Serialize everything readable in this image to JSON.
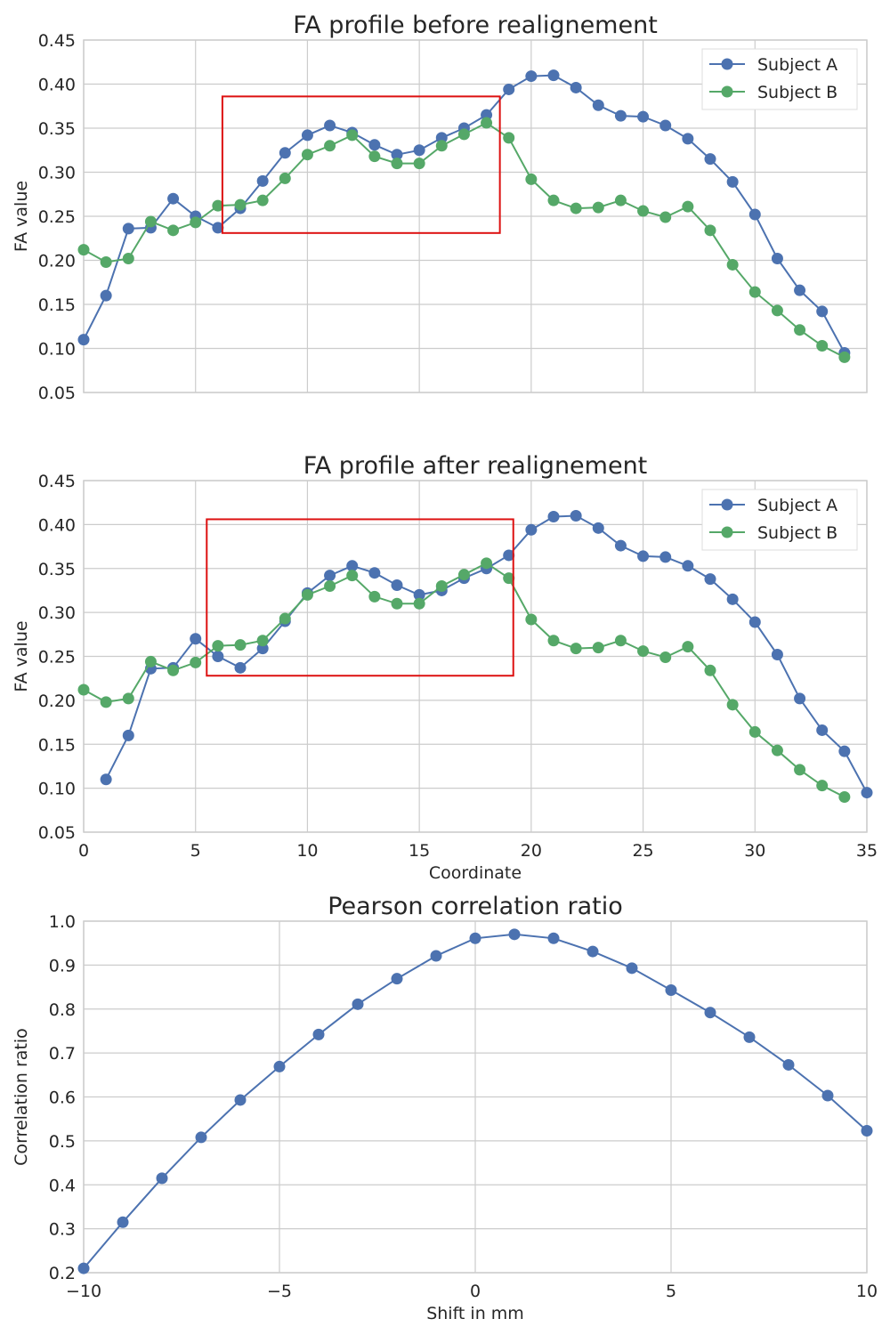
{
  "chart_data": [
    {
      "type": "line",
      "title": "FA profile before realignement",
      "xlabel": "",
      "ylabel": "FA value",
      "xlim": [
        0,
        35
      ],
      "ylim": [
        0.05,
        0.45
      ],
      "xticks": [
        0,
        5,
        10,
        15,
        20,
        25,
        30,
        35
      ],
      "xtick_labels": [],
      "yticks": [
        0.05,
        0.1,
        0.15,
        0.2,
        0.25,
        0.3,
        0.35,
        0.4,
        0.45
      ],
      "ytick_labels": [
        "0.05",
        "0.10",
        "0.15",
        "0.20",
        "0.25",
        "0.30",
        "0.35",
        "0.40",
        "0.45"
      ],
      "grid": true,
      "legend": "top-right",
      "series": [
        {
          "name": "Subject A",
          "color": "#4c72b0",
          "x": [
            0,
            1,
            2,
            3,
            4,
            5,
            6,
            7,
            8,
            9,
            10,
            11,
            12,
            13,
            14,
            15,
            16,
            17,
            18,
            19,
            20,
            21,
            22,
            23,
            24,
            25,
            26,
            27,
            28,
            29,
            30,
            31,
            32,
            33,
            34
          ],
          "values": [
            0.11,
            0.16,
            0.236,
            0.237,
            0.27,
            0.25,
            0.237,
            0.259,
            0.29,
            0.322,
            0.342,
            0.353,
            0.345,
            0.331,
            0.32,
            0.325,
            0.339,
            0.35,
            0.365,
            0.394,
            0.409,
            0.41,
            0.396,
            0.376,
            0.364,
            0.363,
            0.353,
            0.338,
            0.315,
            0.289,
            0.252,
            0.202,
            0.166,
            0.142,
            0.095
          ]
        },
        {
          "name": "Subject B",
          "color": "#55a868",
          "x": [
            0,
            1,
            2,
            3,
            4,
            5,
            6,
            7,
            8,
            9,
            10,
            11,
            12,
            13,
            14,
            15,
            16,
            17,
            18,
            19,
            20,
            21,
            22,
            23,
            24,
            25,
            26,
            27,
            28,
            29,
            30,
            31,
            32,
            33,
            34
          ],
          "values": [
            0.212,
            0.198,
            0.202,
            0.244,
            0.234,
            0.243,
            0.262,
            0.263,
            0.268,
            0.293,
            0.32,
            0.33,
            0.342,
            0.318,
            0.31,
            0.31,
            0.33,
            0.343,
            0.356,
            0.339,
            0.292,
            0.268,
            0.259,
            0.26,
            0.268,
            0.256,
            0.249,
            0.261,
            0.234,
            0.195,
            0.164,
            0.143,
            0.121,
            0.103,
            0.09
          ]
        }
      ],
      "highlight_box": {
        "x": [
          6.2,
          18.6
        ],
        "y": [
          0.231,
          0.386
        ],
        "color": "#dd1111"
      }
    },
    {
      "type": "line",
      "title": "FA profile after realignement",
      "xlabel": "Coordinate",
      "ylabel": "FA value",
      "xlim": [
        0,
        35
      ],
      "ylim": [
        0.05,
        0.45
      ],
      "xticks": [
        0,
        5,
        10,
        15,
        20,
        25,
        30,
        35
      ],
      "xtick_labels": [
        "0",
        "5",
        "10",
        "15",
        "20",
        "25",
        "30",
        "35"
      ],
      "yticks": [
        0.05,
        0.1,
        0.15,
        0.2,
        0.25,
        0.3,
        0.35,
        0.4,
        0.45
      ],
      "ytick_labels": [
        "0.05",
        "0.10",
        "0.15",
        "0.20",
        "0.25",
        "0.30",
        "0.35",
        "0.40",
        "0.45"
      ],
      "grid": true,
      "legend": "top-right",
      "series": [
        {
          "name": "Subject A",
          "color": "#4c72b0",
          "x": [
            1,
            2,
            3,
            4,
            5,
            6,
            7,
            8,
            9,
            10,
            11,
            12,
            13,
            14,
            15,
            16,
            17,
            18,
            19,
            20,
            21,
            22,
            23,
            24,
            25,
            26,
            27,
            28,
            29,
            30,
            31,
            32,
            33,
            34,
            35
          ],
          "values": [
            0.11,
            0.16,
            0.236,
            0.237,
            0.27,
            0.25,
            0.237,
            0.259,
            0.29,
            0.322,
            0.342,
            0.353,
            0.345,
            0.331,
            0.32,
            0.325,
            0.339,
            0.35,
            0.365,
            0.394,
            0.409,
            0.41,
            0.396,
            0.376,
            0.364,
            0.363,
            0.353,
            0.338,
            0.315,
            0.289,
            0.252,
            0.202,
            0.166,
            0.142,
            0.095
          ]
        },
        {
          "name": "Subject B",
          "color": "#55a868",
          "x": [
            0,
            1,
            2,
            3,
            4,
            5,
            6,
            7,
            8,
            9,
            10,
            11,
            12,
            13,
            14,
            15,
            16,
            17,
            18,
            19,
            20,
            21,
            22,
            23,
            24,
            25,
            26,
            27,
            28,
            29,
            30,
            31,
            32,
            33,
            34
          ],
          "values": [
            0.212,
            0.198,
            0.202,
            0.244,
            0.234,
            0.243,
            0.262,
            0.263,
            0.268,
            0.293,
            0.32,
            0.33,
            0.342,
            0.318,
            0.31,
            0.31,
            0.33,
            0.343,
            0.356,
            0.339,
            0.292,
            0.268,
            0.259,
            0.26,
            0.268,
            0.256,
            0.249,
            0.261,
            0.234,
            0.195,
            0.164,
            0.143,
            0.121,
            0.103,
            0.09
          ]
        }
      ],
      "highlight_box": {
        "x": [
          5.5,
          19.2
        ],
        "y": [
          0.228,
          0.406
        ],
        "color": "#dd1111"
      }
    },
    {
      "type": "line",
      "title": "Pearson correlation ratio",
      "xlabel": "Shift in mm",
      "ylabel": "Correlation ratio",
      "xlim": [
        -10,
        10
      ],
      "ylim": [
        0.2,
        1.0
      ],
      "xticks": [
        -10,
        -5,
        0,
        5,
        10
      ],
      "xtick_labels": [
        "−10",
        "−5",
        "0",
        "5",
        "10"
      ],
      "yticks": [
        0.2,
        0.3,
        0.4,
        0.5,
        0.6,
        0.7,
        0.8,
        0.9,
        1.0
      ],
      "ytick_labels": [
        "0.2",
        "0.3",
        "0.4",
        "0.5",
        "0.6",
        "0.7",
        "0.8",
        "0.9",
        "1.0"
      ],
      "grid": true,
      "legend": "none",
      "series": [
        {
          "name": "Correlation",
          "color": "#4c72b0",
          "x": [
            -10,
            -9,
            -8,
            -7,
            -6,
            -5,
            -4,
            -3,
            -2,
            -1,
            0,
            1,
            2,
            3,
            4,
            5,
            6,
            7,
            8,
            9,
            10
          ],
          "values": [
            0.21,
            0.315,
            0.415,
            0.508,
            0.593,
            0.669,
            0.742,
            0.811,
            0.869,
            0.921,
            0.961,
            0.97,
            0.961,
            0.931,
            0.893,
            0.843,
            0.792,
            0.736,
            0.673,
            0.603,
            0.523
          ]
        }
      ]
    }
  ]
}
